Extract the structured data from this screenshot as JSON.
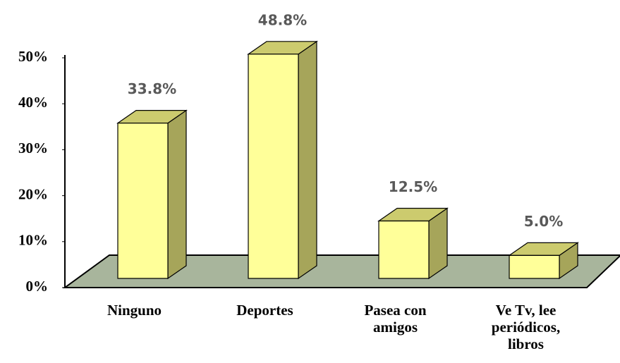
{
  "chart_data": {
    "type": "bar3d",
    "categories": [
      "Ninguno",
      "Deportes",
      "Pasea con amigos",
      "Ve Tv, lee periódicos, libros"
    ],
    "values": [
      33.8,
      48.8,
      12.5,
      5.0
    ],
    "value_labels": [
      "33.8%",
      "48.8%",
      "12.5%",
      "5.0%"
    ],
    "color": "#ffff99",
    "ylim": [
      0,
      50
    ],
    "yticks": [
      {
        "value": 0,
        "label": "0%"
      },
      {
        "value": 10,
        "label": "10%"
      },
      {
        "value": 20,
        "label": "20%"
      },
      {
        "value": 30,
        "label": "30%"
      },
      {
        "value": 40,
        "label": "40%"
      },
      {
        "value": 50,
        "label": "50%"
      }
    ]
  }
}
